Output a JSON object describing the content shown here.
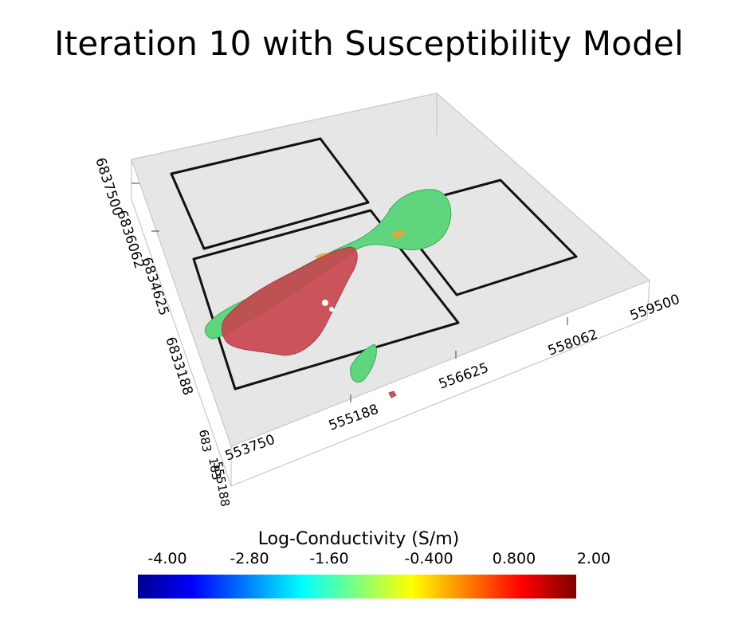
{
  "title": "Iteration 10 with Susceptibility Model",
  "axes": {
    "easting_ticks": [
      "553750",
      "555188",
      "556625",
      "558062",
      "559500"
    ],
    "northing_ticks": [
      "6837500",
      "6836062",
      "6834625",
      "6833188"
    ],
    "overlapped_labels": [
      "683",
      "183",
      "555188"
    ]
  },
  "colorbar": {
    "title": "Log-Conductivity (S/m)",
    "ticks": [
      "-4.00",
      "-2.80",
      "-1.60",
      "-0.400",
      "0.800",
      "2.00"
    ],
    "range": [
      -4.0,
      2.0
    ],
    "colors": [
      "#00008f",
      "#0000ff",
      "#0080ff",
      "#00ffff",
      "#80ff80",
      "#ffff00",
      "#ff8000",
      "#ff0000",
      "#800000"
    ]
  }
}
